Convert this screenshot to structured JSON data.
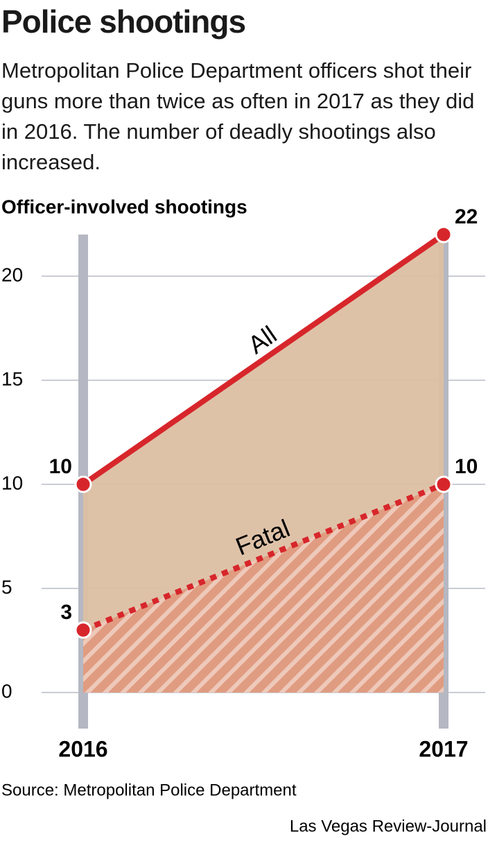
{
  "chart_data": {
    "type": "line",
    "title": "Police shootings",
    "subtitle": "Metropolitan Police Department officers shot their guns more than twice as often in 2017 as they did in 2016. The number of deadly shootings also increased.",
    "y_label": "Officer-involved shootings",
    "categories": [
      "2016",
      "2017"
    ],
    "series": [
      {
        "name": "All",
        "color": "#d7262b",
        "fill": "#dcbfa3",
        "line_style": "solid",
        "values": [
          10,
          22
        ]
      },
      {
        "name": "Fatal",
        "color": "#d7262b",
        "fill": "#e0987c",
        "line_style": "dotted",
        "values": [
          3,
          10
        ]
      }
    ],
    "ylim": [
      0,
      22
    ],
    "yticks": [
      0,
      5,
      10,
      15,
      20
    ],
    "grid": true,
    "source": "Source: Metropolitan Police Department",
    "credit": "Las Vegas Review-Journal"
  }
}
